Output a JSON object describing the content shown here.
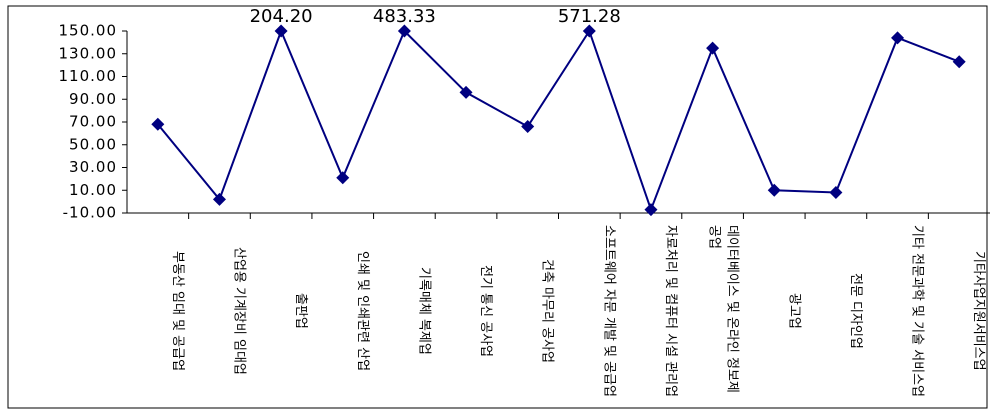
{
  "chart_data": {
    "type": "line",
    "categories": [
      "부동산 임대 및 공급업",
      "산업용 기계장비 임대업",
      "출판업",
      "인쇄 및 인쇄관련 산업",
      "기록매체 복제업",
      "전기 통신 공사업",
      "건축 마무리 공사업",
      "소프트웨어 자문 개발 및 공급업",
      "자료처리 및 컴퓨터 시설 관리업",
      "데이터베이스 및 온라인 정보제공업",
      "광고업",
      "전문 디자인업",
      "기타 전문과학 및 기술 서비스업",
      "기타사업지원서비스업"
    ],
    "values": [
      68,
      2,
      204.2,
      21,
      483.33,
      96,
      66,
      571.28,
      -7,
      135,
      10,
      8,
      144,
      123
    ],
    "value_labels": [
      null,
      null,
      "204.20",
      null,
      "483.33",
      null,
      null,
      "571.28",
      null,
      null,
      null,
      null,
      null,
      null
    ],
    "color": "#000080",
    "ylim": [
      -10,
      150
    ],
    "yticks": [
      {
        "value": -10,
        "label": "-10.00"
      },
      {
        "value": 10,
        "label": "10.00"
      },
      {
        "value": 30,
        "label": "30.00"
      },
      {
        "value": 50,
        "label": "50.00"
      },
      {
        "value": 70,
        "label": "70.00"
      },
      {
        "value": 90,
        "label": "90.00"
      },
      {
        "value": 110,
        "label": "110.00"
      },
      {
        "value": 130,
        "label": "130.00"
      },
      {
        "value": 150,
        "label": "150.00"
      }
    ],
    "grid": false
  }
}
